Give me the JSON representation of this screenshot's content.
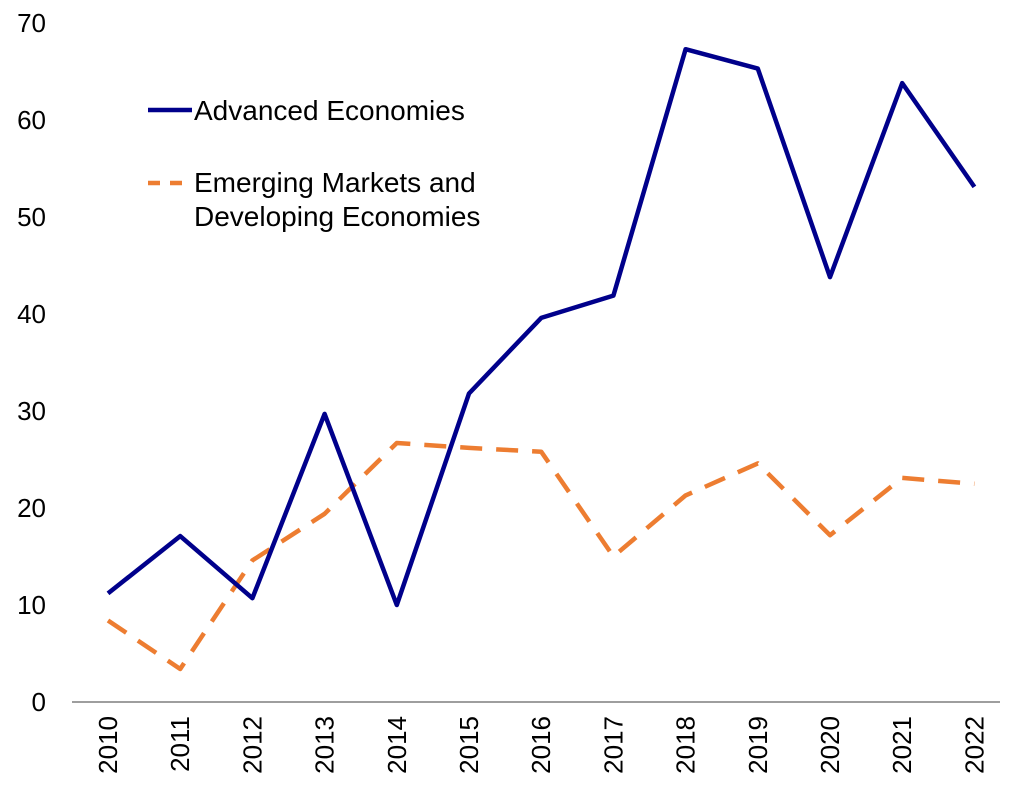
{
  "chart_data": {
    "type": "line",
    "categories": [
      "2010",
      "2011",
      "2012",
      "2013",
      "2014",
      "2015",
      "2016",
      "2017",
      "2018",
      "2019",
      "2020",
      "2021",
      "2022"
    ],
    "series": [
      {
        "name": "Advanced Economies",
        "color": "#00008B",
        "style": "solid",
        "values": [
          11.2,
          17.1,
          10.7,
          29.7,
          10.0,
          31.8,
          39.6,
          41.9,
          67.3,
          65.3,
          43.8,
          63.8,
          53.1
        ]
      },
      {
        "name": "Emerging Markets and Developing Economies",
        "name_lines": [
          "Emerging Markets and",
          "Developing Economies"
        ],
        "color": "#ED7D31",
        "style": "dashed",
        "values": [
          8.4,
          3.4,
          14.6,
          19.4,
          26.7,
          26.2,
          25.8,
          15.0,
          21.3,
          24.6,
          17.2,
          23.1,
          22.5
        ]
      }
    ],
    "ylim": [
      0,
      70
    ],
    "yticks": [
      "0",
      "10",
      "20",
      "30",
      "40",
      "50",
      "60",
      "70"
    ],
    "grid": false,
    "legend_position": "top-left"
  }
}
